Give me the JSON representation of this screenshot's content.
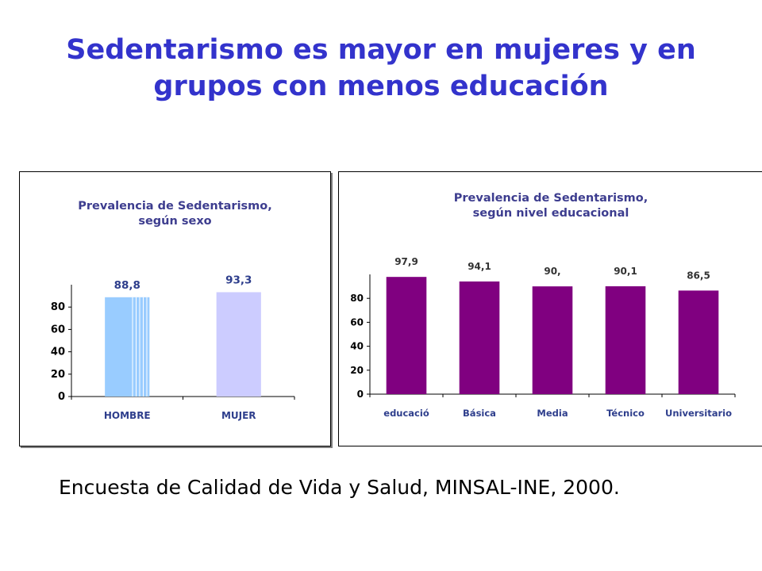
{
  "title": {
    "line1": "Sedentarismo es mayor en mujeres y en",
    "line2": "grupos con menos educación"
  },
  "chart_left": {
    "title_line1": "Prevalencia de Sedentarismo,",
    "title_line2": "según sexo",
    "y_ticks": [
      "0",
      "20",
      "40",
      "60",
      "80"
    ],
    "chart_data": {
      "type": "bar",
      "title": "Prevalencia de Sedentarismo, según sexo",
      "categories": [
        "HOMBRE",
        "MUJER"
      ],
      "values": [
        88.8,
        93.3
      ],
      "value_labels": [
        "88,8",
        "93,3"
      ],
      "ylim": [
        0,
        100
      ],
      "y_ticks": [
        0,
        20,
        40,
        60,
        80
      ],
      "bar_colors": [
        "#99ccff",
        "#ccccff"
      ],
      "grid": false,
      "legend": "none"
    }
  },
  "chart_right": {
    "title_line1": "Prevalencia de Sedentarismo,",
    "title_line2": "según nivel educacional",
    "y_ticks": [
      "0",
      "20",
      "40",
      "60",
      "80"
    ],
    "chart_data": {
      "type": "bar",
      "title": "Prevalencia de Sedentarismo, según nivel educacional",
      "categories": [
        "educació",
        "Básica",
        "Media",
        "Técnico",
        "Universitario"
      ],
      "values": [
        97.9,
        94.1,
        90.0,
        90.1,
        86.5
      ],
      "value_labels": [
        "97,9",
        "94,1",
        "90,",
        "90,1",
        "86,5"
      ],
      "ylim": [
        0,
        100
      ],
      "y_ticks": [
        0,
        20,
        40,
        60,
        80
      ],
      "bar_colors": [
        "#800080",
        "#800080",
        "#800080",
        "#800080",
        "#800080"
      ],
      "grid": false,
      "legend": "none"
    }
  },
  "source": "Encuesta de Calidad de Vida y Salud, MINSAL-INE, 2000."
}
